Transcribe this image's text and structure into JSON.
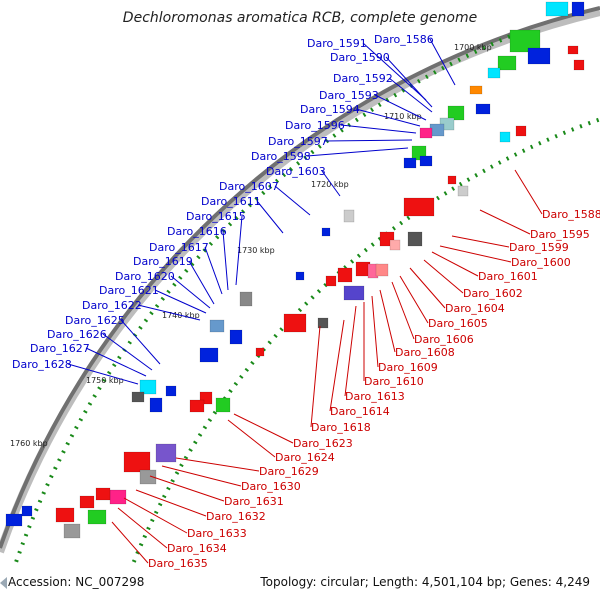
{
  "title": "Dechloromonas aromatica RCB, complete genome",
  "accession": "Accession: NC_007298",
  "summary": "Topology: circular; Length: 4,501,104 bp; Genes: 4,249",
  "left_labels": [
    "Daro_1591",
    "Daro_1586",
    "Daro_1590",
    "Daro_1592",
    "Daro_1593",
    "Daro_1594",
    "Daro_1596",
    "Daro_1597",
    "Daro_1598",
    "Daro_1603",
    "Daro_1607",
    "Daro_1611",
    "Daro_1615",
    "Daro_1616",
    "Daro_1617",
    "Daro_1619",
    "Daro_1620",
    "Daro_1621",
    "Daro_1622",
    "Daro_1625",
    "Daro_1626",
    "Daro_1627",
    "Daro_1628"
  ],
  "right_labels": [
    "Daro_1588",
    "Daro_1595",
    "Daro_1599",
    "Daro_1600",
    "Daro_1601",
    "Daro_1602",
    "Daro_1604",
    "Daro_1605",
    "Daro_1606",
    "Daro_1608",
    "Daro_1609",
    "Daro_1610",
    "Daro_1613",
    "Daro_1614",
    "Daro_1618",
    "Daro_1623",
    "Daro_1624",
    "Daro_1629",
    "Daro_1630",
    "Daro_1631",
    "Daro_1632",
    "Daro_1633",
    "Daro_1634",
    "Daro_1635"
  ],
  "ticks": [
    "1700 kbp",
    "1710 kbp",
    "1720 kbp",
    "1730 kbp",
    "1740 kbp",
    "1750 kbp",
    "1760 kbp"
  ],
  "colors": {
    "forward_label": "#0000cc",
    "reverse_label": "#cc0000",
    "backbone": "#707070",
    "forward_gene": "#0022dd",
    "reverse_gene": "#ee1111",
    "tick_dots": "#1a8a1a"
  }
}
